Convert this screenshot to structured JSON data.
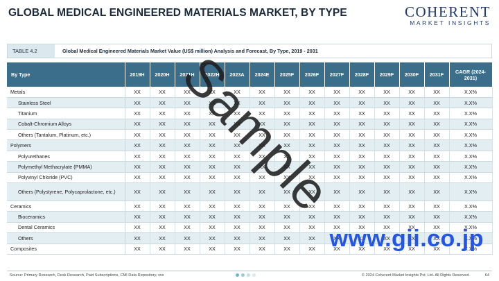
{
  "header": {
    "title": "GLOBAL MEDICAL ENGINEERED MATERIALS MARKET, BY TYPE",
    "logo_main": "COHERENT",
    "logo_sub": "MARKET INSIGHTS"
  },
  "table_label": {
    "tag": "TABLE 4.2",
    "caption": "Global Medical Engineered Materials Market Value (US$ million) Analysis and Forecast, By Type, 2019 - 2031"
  },
  "table": {
    "columns": [
      "By Type",
      "2019H",
      "2020H",
      "2021H",
      "2022H",
      "2023A",
      "2024E",
      "2025F",
      "2026F",
      "2027F",
      "2028F",
      "2029F",
      "2030F",
      "2031F",
      "CAGR (2024-2031)"
    ],
    "rows": [
      {
        "label": "Metals",
        "sub": false,
        "cells": [
          "XX",
          "XX",
          "XX",
          "XX",
          "XX",
          "XX",
          "XX",
          "XX",
          "XX",
          "XX",
          "XX",
          "XX",
          "XX",
          "X.X%"
        ]
      },
      {
        "label": "Stainless Steel",
        "sub": true,
        "cells": [
          "XX",
          "XX",
          "XX",
          "XX",
          "XX",
          "XX",
          "XX",
          "XX",
          "XX",
          "XX",
          "XX",
          "XX",
          "XX",
          "X.X%"
        ]
      },
      {
        "label": "Titanium",
        "sub": true,
        "cells": [
          "XX",
          "XX",
          "XX",
          "XX",
          "XX",
          "XX",
          "XX",
          "XX",
          "XX",
          "XX",
          "XX",
          "XX",
          "XX",
          "X.X%"
        ]
      },
      {
        "label": "Cobalt-Chromium Alloys",
        "sub": true,
        "cells": [
          "XX",
          "XX",
          "XX",
          "XX",
          "XX",
          "XX",
          "XX",
          "XX",
          "XX",
          "XX",
          "XX",
          "XX",
          "XX",
          "X.X%"
        ]
      },
      {
        "label": "Others (Tantalum, Platinum, etc.)",
        "sub": true,
        "cells": [
          "XX",
          "XX",
          "XX",
          "XX",
          "XX",
          "XX",
          "XX",
          "XX",
          "XX",
          "XX",
          "XX",
          "XX",
          "XX",
          "X.X%"
        ]
      },
      {
        "label": "Polymers",
        "sub": false,
        "cells": [
          "XX",
          "XX",
          "XX",
          "XX",
          "XX",
          "XX",
          "XX",
          "XX",
          "XX",
          "XX",
          "XX",
          "XX",
          "XX",
          "X.X%"
        ]
      },
      {
        "label": "Polyurethanes",
        "sub": true,
        "cells": [
          "XX",
          "XX",
          "XX",
          "XX",
          "XX",
          "XX",
          "XX",
          "XX",
          "XX",
          "XX",
          "XX",
          "XX",
          "XX",
          "X.X%"
        ]
      },
      {
        "label": "Polymethyl Methacrylate (PMMA)",
        "sub": true,
        "cells": [
          "XX",
          "XX",
          "XX",
          "XX",
          "XX",
          "XX",
          "XX",
          "XX",
          "XX",
          "XX",
          "XX",
          "XX",
          "XX",
          "X.X%"
        ]
      },
      {
        "label": "Polyvinyl Chloride (PVC)",
        "sub": true,
        "cells": [
          "XX",
          "XX",
          "XX",
          "XX",
          "XX",
          "XX",
          "XX",
          "XX",
          "XX",
          "XX",
          "XX",
          "XX",
          "XX",
          "X.X%"
        ]
      },
      {
        "label": "Others (Polystyrene, Polycaprolactone, etc.)",
        "sub": true,
        "tall": true,
        "cells": [
          "XX",
          "XX",
          "XX",
          "XX",
          "XX",
          "XX",
          "XX",
          "XX",
          "XX",
          "XX",
          "XX",
          "XX",
          "XX",
          "X.X%"
        ]
      },
      {
        "label": "Ceramics",
        "sub": false,
        "cells": [
          "XX",
          "XX",
          "XX",
          "XX",
          "XX",
          "XX",
          "XX",
          "XX",
          "XX",
          "XX",
          "XX",
          "XX",
          "XX",
          "X.X%"
        ]
      },
      {
        "label": "Bioceramics",
        "sub": true,
        "cells": [
          "XX",
          "XX",
          "XX",
          "XX",
          "XX",
          "XX",
          "XX",
          "XX",
          "XX",
          "XX",
          "XX",
          "XX",
          "XX",
          "X.X%"
        ]
      },
      {
        "label": "Dental Ceramics",
        "sub": true,
        "cells": [
          "XX",
          "XX",
          "XX",
          "XX",
          "XX",
          "XX",
          "XX",
          "XX",
          "XX",
          "XX",
          "XX",
          "XX",
          "XX",
          "X.X%"
        ]
      },
      {
        "label": "Others",
        "sub": true,
        "cells": [
          "XX",
          "XX",
          "XX",
          "XX",
          "XX",
          "XX",
          "XX",
          "XX",
          "XX",
          "XX",
          "XX",
          "XX",
          "XX",
          "X.X%"
        ]
      },
      {
        "label": "Composites",
        "sub": false,
        "cells": [
          "XX",
          "XX",
          "XX",
          "XX",
          "XX",
          "XX",
          "XX",
          "XX",
          "XX",
          "XX",
          "XX",
          "XX",
          "XX",
          "X.X%"
        ]
      }
    ]
  },
  "watermark": "Sample",
  "gii_watermark": "www.gii.co.jp",
  "footer": {
    "source": "Source: Primary Research, Desk Research, Paid Subscriptions, CMI Data Repository, xxx",
    "copyright": "© 2024 Coherent Market Insights Pvt. Ltd. All Rights Reserved.",
    "page": "64"
  },
  "colors": {
    "header_bg": "#3b6e8a",
    "row_alt": "#e3eef3",
    "tag_bg": "#dbe9ee",
    "brand": "#1e3a6e",
    "gii": "#2355e6"
  }
}
